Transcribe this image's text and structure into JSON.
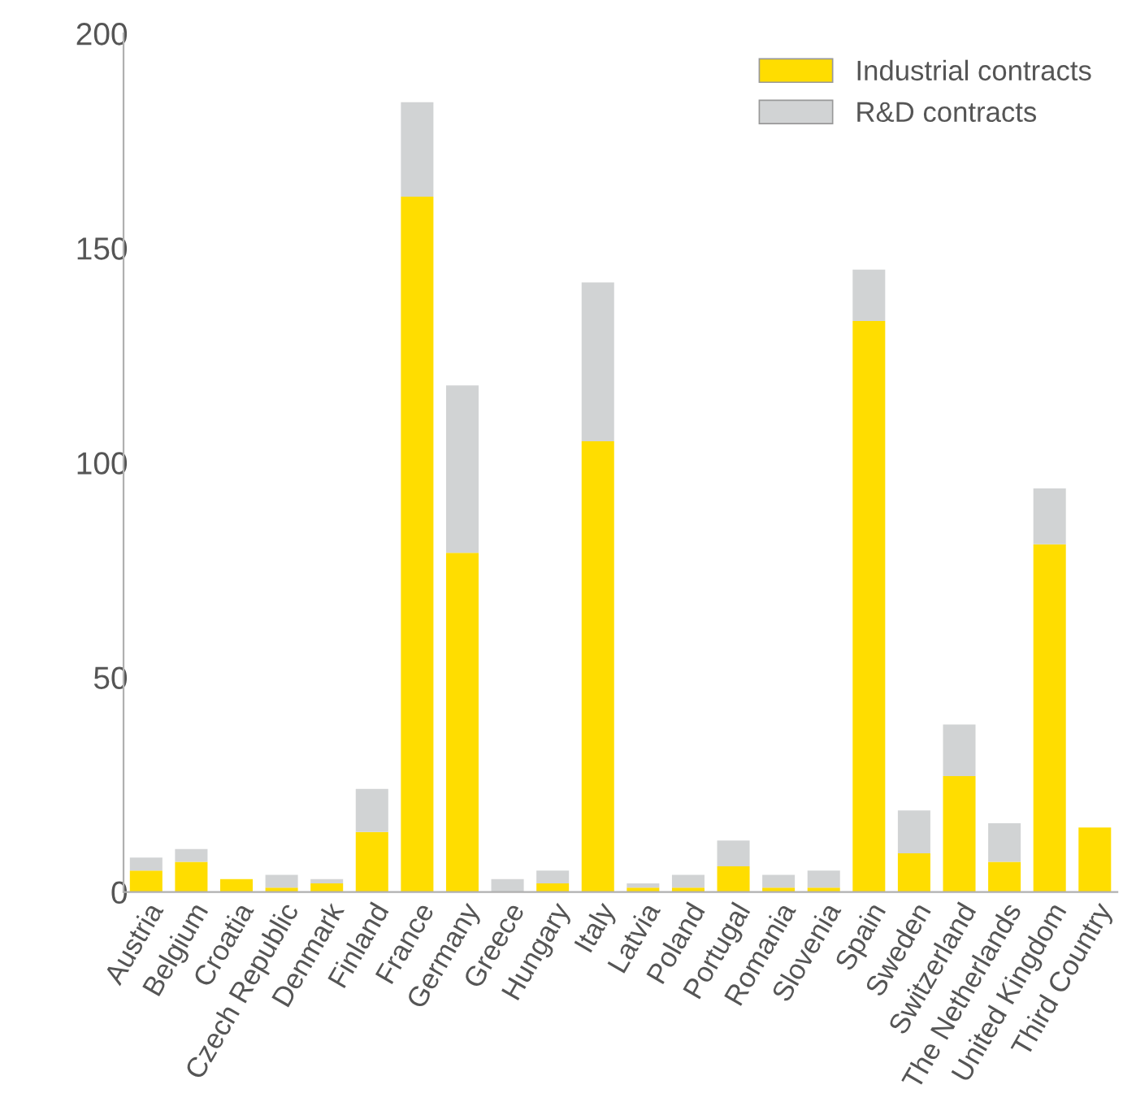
{
  "chart_data": {
    "type": "bar",
    "stacked": true,
    "categories": [
      "Austria",
      "Belgium",
      "Croatia",
      "Czech Republic",
      "Denmark",
      "Finland",
      "France",
      "Germany",
      "Greece",
      "Hungary",
      "Italy",
      "Latvia",
      "Poland",
      "Portugal",
      "Romania",
      "Slovenia",
      "Spain",
      "Sweden",
      "Switzerland",
      "The Netherlands",
      "United Kingdom",
      "Third Country"
    ],
    "series": [
      {
        "name": "Industrial contracts",
        "color": "#ffdd00",
        "values": [
          5,
          7,
          3,
          1,
          2,
          14,
          162,
          79,
          0,
          2,
          105,
          1,
          1,
          6,
          1,
          1,
          133,
          9,
          27,
          7,
          81,
          15
        ]
      },
      {
        "name": "R&D contracts",
        "color": "#d1d3d4",
        "values": [
          3,
          3,
          0,
          3,
          1,
          10,
          22,
          39,
          3,
          3,
          37,
          1,
          3,
          6,
          3,
          4,
          12,
          10,
          12,
          9,
          13,
          0
        ]
      }
    ],
    "ylim": [
      0,
      200
    ],
    "yticks": [
      0,
      50,
      100,
      150,
      200
    ],
    "grid": false,
    "legend": "top right"
  }
}
